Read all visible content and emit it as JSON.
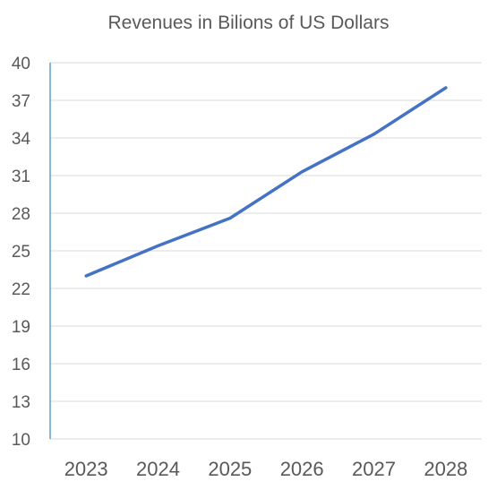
{
  "chart_data": {
    "type": "line",
    "title": "Revenues in Bilions of US Dollars",
    "xlabel": "",
    "ylabel": "",
    "categories": [
      "2023",
      "2024",
      "2025",
      "2026",
      "2027",
      "2028"
    ],
    "series": [
      {
        "values": [
          23.0,
          25.4,
          27.6,
          31.3,
          34.3,
          38.0
        ]
      }
    ],
    "ylim": [
      10,
      40
    ],
    "yticks": [
      "10",
      "13",
      "16",
      "19",
      "22",
      "25",
      "28",
      "31",
      "34",
      "37",
      "40"
    ],
    "grid": true,
    "legend": "none",
    "colors": {
      "line": "#4472C4",
      "grid": "#D9D9D9",
      "axis": "#5B9BD5",
      "text": "#595959"
    }
  }
}
